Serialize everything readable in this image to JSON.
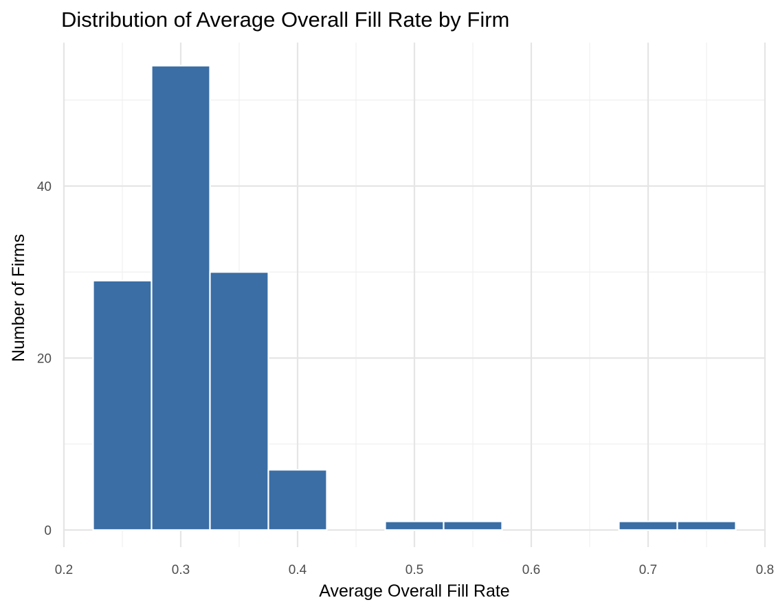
{
  "chart_data": {
    "type": "bar",
    "title": "Distribution of Average Overall Fill Rate by Firm",
    "xlabel": "Average Overall Fill Rate",
    "ylabel": "Number of Firms",
    "bin_width": 0.05,
    "bins": [
      {
        "x_start": 0.225,
        "x_end": 0.275,
        "count": 29
      },
      {
        "x_start": 0.275,
        "x_end": 0.325,
        "count": 54
      },
      {
        "x_start": 0.325,
        "x_end": 0.375,
        "count": 30
      },
      {
        "x_start": 0.375,
        "x_end": 0.425,
        "count": 7
      },
      {
        "x_start": 0.425,
        "x_end": 0.475,
        "count": 0
      },
      {
        "x_start": 0.475,
        "x_end": 0.525,
        "count": 1
      },
      {
        "x_start": 0.525,
        "x_end": 0.575,
        "count": 1
      },
      {
        "x_start": 0.575,
        "x_end": 0.625,
        "count": 0
      },
      {
        "x_start": 0.625,
        "x_end": 0.675,
        "count": 0
      },
      {
        "x_start": 0.675,
        "x_end": 0.725,
        "count": 1
      },
      {
        "x_start": 0.725,
        "x_end": 0.775,
        "count": 1
      }
    ],
    "xlim": [
      0.2,
      0.8
    ],
    "ylim": [
      0,
      55
    ],
    "x_ticks": [
      "0.2",
      "0.3",
      "0.4",
      "0.5",
      "0.6",
      "0.7",
      "0.8"
    ],
    "y_ticks": [
      "0",
      "20",
      "40"
    ],
    "grid": true,
    "legend": "none",
    "colors": {
      "bar_fill": "#3a6ea5",
      "bar_outline": "#ffffff",
      "grid": "#e5e5e5",
      "background": "#ffffff"
    }
  }
}
